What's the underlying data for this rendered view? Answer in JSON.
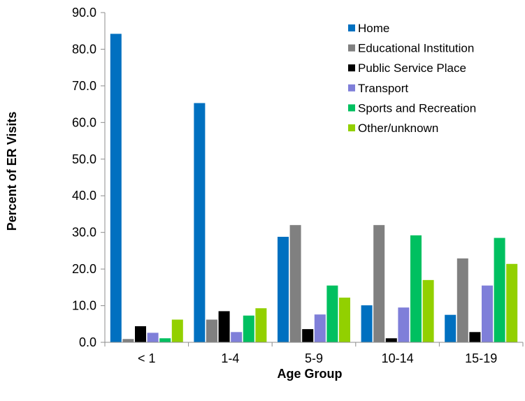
{
  "chart_data": {
    "type": "bar",
    "title": "",
    "xlabel": "Age Group",
    "ylabel": "Percent of ER Visits",
    "categories": [
      "< 1",
      "1-4",
      "5-9",
      "10-14",
      "15-19"
    ],
    "ylim": [
      0,
      90
    ],
    "yticks": [
      "0.0",
      "10.0",
      "20.0",
      "30.0",
      "40.0",
      "50.0",
      "60.0",
      "70.0",
      "80.0",
      "90.0"
    ],
    "grid": false,
    "legend_position": "top-right",
    "series": [
      {
        "name": "Home",
        "color": "#0070C0",
        "values": [
          84.2,
          65.3,
          28.8,
          10.1,
          7.5
        ]
      },
      {
        "name": "Educational Institution",
        "color": "#808080",
        "values": [
          0.9,
          6.2,
          32.0,
          32.0,
          22.9
        ]
      },
      {
        "name": "Public Service Place",
        "color": "#000000",
        "values": [
          4.4,
          8.5,
          3.6,
          1.1,
          2.8
        ]
      },
      {
        "name": "Transport",
        "color": "#7F7FD9",
        "values": [
          2.6,
          2.8,
          7.6,
          9.5,
          15.5
        ]
      },
      {
        "name": "Sports and Recreation",
        "color": "#00C060",
        "values": [
          1.1,
          7.3,
          15.5,
          29.2,
          28.5
        ]
      },
      {
        "name": "Other/unknown",
        "color": "#92D000",
        "values": [
          6.2,
          9.3,
          12.2,
          17.0,
          21.4
        ]
      }
    ]
  }
}
